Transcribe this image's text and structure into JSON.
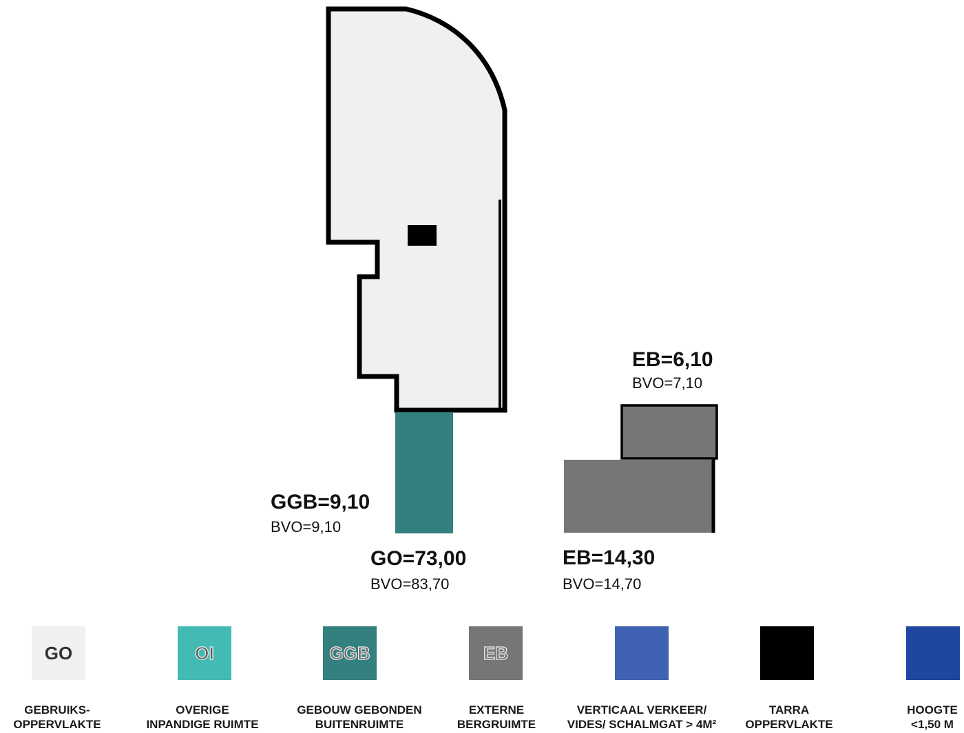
{
  "colors": {
    "go": "#f0f0f0",
    "oi": "#43bbb4",
    "ggb": "#34807e",
    "eb": "#767676",
    "verticaal": "#3f63b2",
    "tarra": "#000000",
    "hoogte": "#1f47a0",
    "outline": "#000000"
  },
  "areas": {
    "go": {
      "label": "GO=73,00",
      "bvo": "BVO=83,70"
    },
    "ggb": {
      "label": "GGB=9,10",
      "bvo": "BVO=9,10"
    },
    "eb_large": {
      "label": "EB=14,30",
      "bvo": "BVO=14,70"
    },
    "eb_small": {
      "label": "EB=6,10",
      "bvo": "BVO=7,10"
    }
  },
  "legend": [
    {
      "key": "go",
      "swatch_text": "GO",
      "line1": "GEBRUIKS-",
      "line2": "OPPERVLAKTE",
      "color": "#f0f0f0"
    },
    {
      "key": "oi",
      "swatch_text": "OI",
      "line1": "OVERIGE",
      "line2": "INPANDIGE RUIMTE",
      "color": "#43bbb4"
    },
    {
      "key": "ggb",
      "swatch_text": "GGB",
      "line1": "GEBOUW GEBONDEN",
      "line2": "BUITENRUIMTE",
      "color": "#34807e"
    },
    {
      "key": "eb",
      "swatch_text": "EB",
      "line1": "EXTERNE",
      "line2": "BERGRUIMTE",
      "color": "#767676"
    },
    {
      "key": "verticaal",
      "swatch_text": "",
      "line1": "VERTICAAL VERKEER/",
      "line2": "VIDES/ SCHALMGAT > 4M²",
      "color": "#3f63b2"
    },
    {
      "key": "tarra",
      "swatch_text": "",
      "line1": "TARRA",
      "line2": "OPPERVLAKTE",
      "color": "#000000"
    },
    {
      "key": "hoogte",
      "swatch_text": "",
      "line1": "HOOGTE",
      "line2": "<1,50 M",
      "color": "#1f47a0"
    }
  ]
}
